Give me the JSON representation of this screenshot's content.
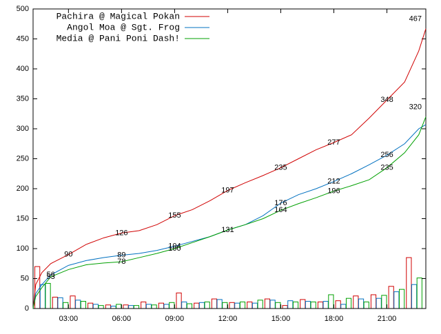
{
  "chart_data": {
    "type": "line",
    "x": [
      1,
      1.15,
      1.5,
      2,
      3,
      4,
      5,
      6,
      7,
      8,
      9,
      10,
      11,
      12,
      13,
      14,
      15,
      16,
      17,
      18,
      19,
      20,
      21,
      22,
      22.8,
      23.2
    ],
    "series": [
      {
        "name": "Pachira @ Magical Pokan",
        "color": "#d00000",
        "values": [
          0,
          40,
          60,
          75,
          90,
          107,
          118,
          126,
          130,
          140,
          155,
          165,
          180,
          197,
          210,
          222,
          235,
          250,
          265,
          277,
          290,
          318,
          348,
          378,
          430,
          467
        ],
        "value_labels": [
          null,
          null,
          null,
          null,
          "90",
          null,
          null,
          "126",
          null,
          null,
          "155",
          null,
          null,
          "197",
          null,
          null,
          "235",
          null,
          null,
          "277",
          null,
          null,
          "348",
          null,
          null,
          "467"
        ],
        "hourly": [
          70,
          19,
          21,
          9,
          6,
          6,
          11,
          9,
          26,
          9,
          16,
          10,
          11,
          16,
          5,
          15,
          11,
          13,
          21,
          23,
          37,
          85
        ]
      },
      {
        "name": "Angol Moa @ Sgt. Frog",
        "color": "#0070c0",
        "values": [
          0,
          25,
          40,
          56,
          72,
          80,
          85,
          89,
          92,
          97,
          104,
          112,
          120,
          131,
          140,
          155,
          176,
          190,
          200,
          212,
          225,
          240,
          256,
          275,
          300,
          307
        ],
        "value_labels": [
          null,
          null,
          null,
          "56",
          null,
          null,
          null,
          "89",
          null,
          null,
          "104",
          null,
          null,
          null,
          null,
          null,
          "176",
          null,
          null,
          "212",
          null,
          null,
          "256",
          null,
          null,
          null
        ],
        "hourly": [
          40,
          18,
          14,
          7,
          4,
          5,
          7,
          7,
          11,
          10,
          15,
          9,
          9,
          14,
          13,
          12,
          12,
          7,
          16,
          17,
          28,
          40
        ]
      },
      {
        "name": "Media @ Pani Poni Dash!",
        "color": "#00a000",
        "values": [
          0,
          20,
          35,
          53,
          65,
          73,
          76,
          78,
          85,
          92,
          100,
          110,
          120,
          131,
          140,
          150,
          164,
          175,
          185,
          196,
          205,
          215,
          235,
          260,
          290,
          320
        ],
        "value_labels": [
          null,
          null,
          null,
          "53",
          null,
          null,
          null,
          "78",
          null,
          null,
          "100",
          null,
          null,
          "131",
          null,
          null,
          "164",
          null,
          null,
          "196",
          null,
          null,
          "235",
          null,
          null,
          "320"
        ],
        "hourly": [
          42,
          10,
          12,
          5,
          7,
          5,
          6,
          10,
          8,
          11,
          10,
          11,
          14,
          10,
          11,
          11,
          23,
          17,
          11,
          22,
          32,
          51
        ]
      }
    ],
    "hourly_x": [
      1,
      2,
      3,
      4,
      5,
      6,
      7,
      8,
      9,
      10,
      11,
      12,
      13,
      14,
      15,
      16,
      17,
      18,
      19,
      20,
      21,
      22
    ],
    "xlim": [
      1,
      23.2
    ],
    "xticks": [
      {
        "value": 3,
        "label": "03:00"
      },
      {
        "value": 6,
        "label": "06:00"
      },
      {
        "value": 9,
        "label": "09:00"
      },
      {
        "value": 12,
        "label": "12:00"
      },
      {
        "value": 15,
        "label": "15:00"
      },
      {
        "value": 18,
        "label": "18:00"
      },
      {
        "value": 21,
        "label": "21:00"
      }
    ],
    "ylim": [
      0,
      500
    ],
    "yticks": [
      0,
      50,
      100,
      150,
      200,
      250,
      300,
      350,
      400,
      450,
      500
    ],
    "legend": "top-left"
  }
}
